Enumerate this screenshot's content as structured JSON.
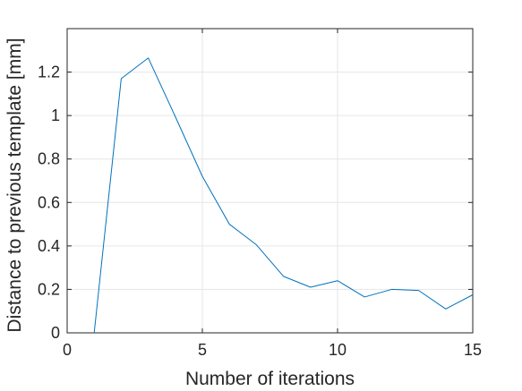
{
  "chart_data": {
    "type": "line",
    "title": "",
    "xlabel": "Number of iterations",
    "ylabel": "Distance to previous template [mm]",
    "xlim": [
      0,
      15
    ],
    "ylim": [
      0,
      1.4
    ],
    "grid": true,
    "x_ticks": [
      0,
      5,
      10,
      15
    ],
    "x_tick_labels": [
      "0",
      "5",
      "10",
      "15"
    ],
    "y_ticks": [
      0,
      0.2,
      0.4,
      0.6,
      0.8,
      1,
      1.2
    ],
    "y_tick_labels": [
      "0",
      "0.2",
      "0.4",
      "0.6",
      "0.8",
      "1",
      "1.2"
    ],
    "series": [
      {
        "color": "#0072bd",
        "x": [
          1,
          2,
          3,
          4,
          5,
          6,
          7,
          8,
          9,
          10,
          11,
          12,
          13,
          14,
          15
        ],
        "y": [
          0,
          1.17,
          1.265,
          0.995,
          0.72,
          0.5,
          0.405,
          0.26,
          0.21,
          0.24,
          0.165,
          0.2,
          0.195,
          0.11,
          0.175
        ]
      }
    ]
  }
}
